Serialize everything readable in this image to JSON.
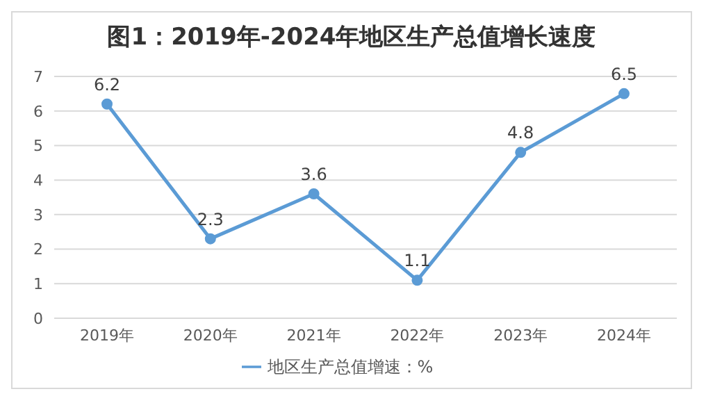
{
  "chart_data": {
    "type": "line",
    "title": "图1：2019年-2024年地区生产总值增长速度",
    "categories": [
      "2019年",
      "2020年",
      "2021年",
      "2022年",
      "2023年",
      "2024年"
    ],
    "series": [
      {
        "name": "地区生产总值增速：%",
        "color": "#5b9bd5",
        "values": [
          6.2,
          2.3,
          3.6,
          1.1,
          4.8,
          6.5
        ]
      }
    ],
    "ylim": [
      0,
      7
    ],
    "yticks": [
      0,
      1,
      2,
      3,
      4,
      5,
      6,
      7
    ],
    "grid": "y",
    "legend": "bottom",
    "marker": "circle",
    "line_style": "solid",
    "data_labels": true
  }
}
